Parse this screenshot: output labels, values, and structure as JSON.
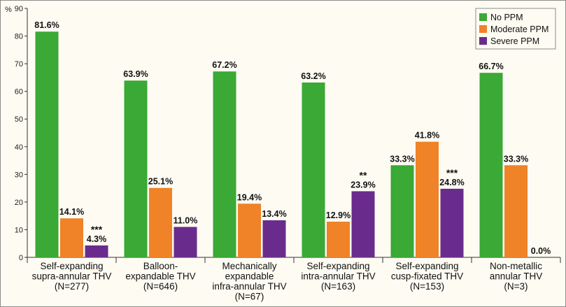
{
  "chart_data": {
    "type": "bar",
    "y_unit_label": "%",
    "ylim": [
      0,
      90
    ],
    "yticks": [
      0,
      10,
      20,
      30,
      40,
      50,
      60,
      70,
      80,
      90
    ],
    "grid": false,
    "legend_position": "top-right",
    "categories": [
      [
        "Self-expanding",
        "supra-annular THV",
        "(N=277)"
      ],
      [
        "Balloon-",
        "expandable THV",
        "(N=646)"
      ],
      [
        "Mechanically",
        "expandable",
        "infra-annular THV",
        "(N=67)"
      ],
      [
        "Self-expanding",
        "intra-annular THV",
        "(N=163)"
      ],
      [
        "Self-expanding",
        "cusp-fixated THV",
        "(N=153)"
      ],
      [
        "Non-metallic",
        "annular THV",
        "(N=3)"
      ]
    ],
    "series": [
      {
        "name": "No PPM",
        "color": "#3aa935",
        "values": [
          81.6,
          63.9,
          67.2,
          63.2,
          33.3,
          66.7
        ],
        "labels": [
          "81.6%",
          "63.9%",
          "67.2%",
          "63.2%",
          "33.3%",
          "66.7%"
        ]
      },
      {
        "name": "Moderate PPM",
        "color": "#f08227",
        "values": [
          14.1,
          25.1,
          19.4,
          12.9,
          41.8,
          33.3
        ],
        "labels": [
          "14.1%",
          "25.1%",
          "19.4%",
          "12.9%",
          "41.8%",
          "33.3%"
        ]
      },
      {
        "name": "Severe PPM",
        "color": "#6a2c8c",
        "values": [
          4.3,
          11.0,
          13.4,
          23.9,
          24.8,
          0.0
        ],
        "labels": [
          "4.3%",
          "11.0%",
          "13.4%",
          "23.9%",
          "24.8%",
          "0.0%"
        ]
      }
    ],
    "significance": [
      {
        "series": 2,
        "category": 0,
        "text": "***"
      },
      {
        "series": 2,
        "category": 3,
        "text": "**"
      },
      {
        "series": 2,
        "category": 4,
        "text": "***"
      }
    ]
  }
}
